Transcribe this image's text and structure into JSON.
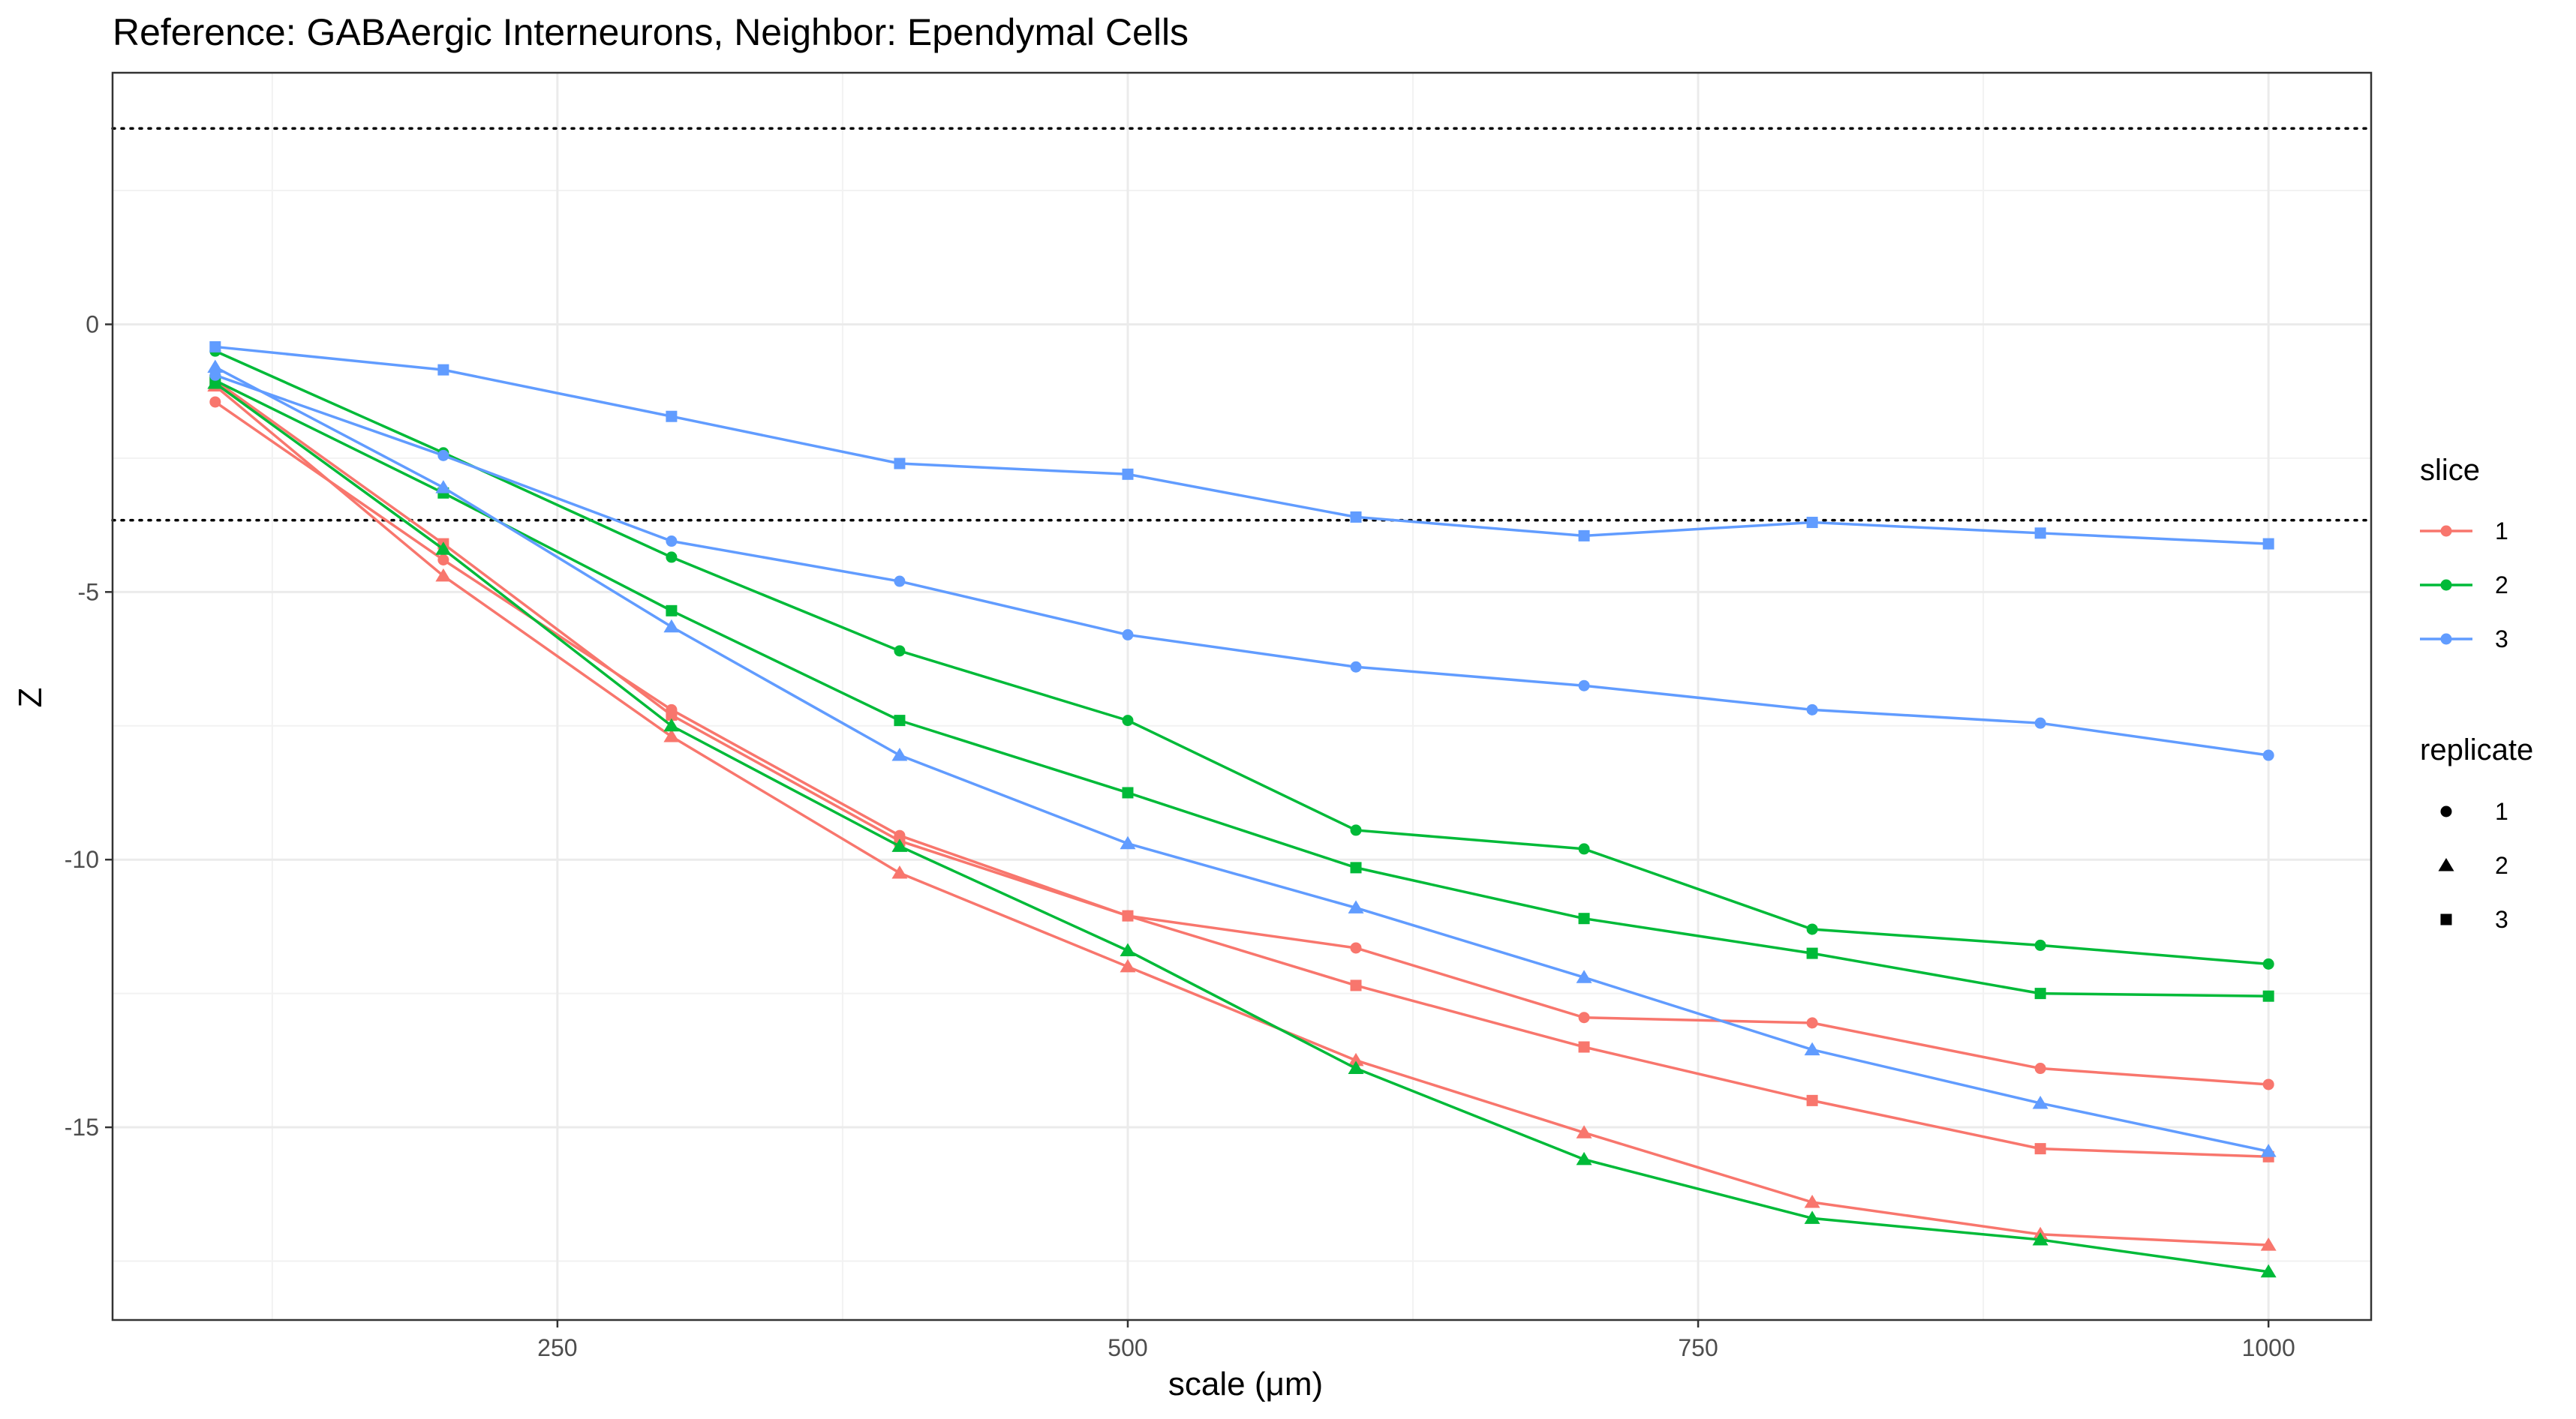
{
  "chart_data": {
    "type": "line",
    "title": "Reference: GABAergic Interneurons, Neighbor: Ependymal Cells",
    "xlabel": "scale (μm)",
    "ylabel": "Z",
    "x": [
      100,
      200,
      300,
      400,
      500,
      600,
      700,
      800,
      900,
      1000
    ],
    "xlim": [
      55,
      1045
    ],
    "ylim": [
      -18.6,
      4.7
    ],
    "x_ticks": [
      250,
      500,
      750,
      1000
    ],
    "x_tick_labels": [
      "250",
      "500",
      "750",
      "1000"
    ],
    "y_ticks": [
      0,
      -5,
      -10,
      -15
    ],
    "y_tick_labels": [
      "0",
      "-5",
      "-10",
      "-15"
    ],
    "hlines": [
      3.66,
      -3.66
    ],
    "grid": true,
    "legend_position": "right",
    "colors": {
      "1": "#F8766D",
      "2": "#00BA38",
      "3": "#619CFF"
    },
    "legend": {
      "color_title": "slice",
      "color_items": [
        {
          "key": "1",
          "label": "1",
          "color": "#F8766D"
        },
        {
          "key": "2",
          "label": "2",
          "color": "#00BA38"
        },
        {
          "key": "3",
          "label": "3",
          "color": "#619CFF"
        }
      ],
      "shape_title": "replicate",
      "shape_items": [
        {
          "key": "circle",
          "label": "1"
        },
        {
          "key": "triangle",
          "label": "2"
        },
        {
          "key": "square",
          "label": "3"
        }
      ]
    },
    "series": [
      {
        "slice": "1",
        "replicate": "1",
        "shape": "circle",
        "values": [
          -1.45,
          -4.4,
          -7.2,
          -9.55,
          -11.05,
          -11.65,
          -12.95,
          -13.05,
          -13.9,
          -14.2
        ]
      },
      {
        "slice": "1",
        "replicate": "2",
        "shape": "triangle",
        "values": [
          -1.15,
          -4.7,
          -7.7,
          -10.25,
          -12.0,
          -13.75,
          -15.1,
          -16.4,
          -17.0,
          -17.2
        ]
      },
      {
        "slice": "1",
        "replicate": "3",
        "shape": "square",
        "values": [
          -1.05,
          -4.1,
          -7.3,
          -9.65,
          -11.05,
          -12.35,
          -13.5,
          -14.5,
          -15.4,
          -15.55
        ]
      },
      {
        "slice": "2",
        "replicate": "1",
        "shape": "circle",
        "values": [
          -0.5,
          -2.4,
          -4.35,
          -6.1,
          -7.4,
          -9.45,
          -9.8,
          -11.3,
          -11.6,
          -11.95
        ]
      },
      {
        "slice": "2",
        "replicate": "2",
        "shape": "triangle",
        "values": [
          -1.1,
          -4.2,
          -7.5,
          -9.75,
          -11.7,
          -13.9,
          -15.6,
          -16.7,
          -17.1,
          -17.7
        ]
      },
      {
        "slice": "2",
        "replicate": "3",
        "shape": "square",
        "values": [
          -1.05,
          -3.15,
          -5.35,
          -7.4,
          -8.75,
          -10.15,
          -11.1,
          -11.75,
          -12.5,
          -12.55
        ]
      },
      {
        "slice": "3",
        "replicate": "1",
        "shape": "circle",
        "values": [
          -0.95,
          -2.45,
          -4.05,
          -4.8,
          -5.8,
          -6.4,
          -6.75,
          -7.2,
          -7.45,
          -8.05
        ]
      },
      {
        "slice": "3",
        "replicate": "2",
        "shape": "triangle",
        "values": [
          -0.8,
          -3.05,
          -5.65,
          -8.05,
          -9.7,
          -10.9,
          -12.2,
          -13.55,
          -14.55,
          -15.45
        ]
      },
      {
        "slice": "3",
        "replicate": "3",
        "shape": "square",
        "values": [
          -0.42,
          -0.85,
          -1.72,
          -2.6,
          -2.8,
          -3.6,
          -3.95,
          -3.7,
          -3.9,
          -4.1
        ]
      }
    ]
  }
}
